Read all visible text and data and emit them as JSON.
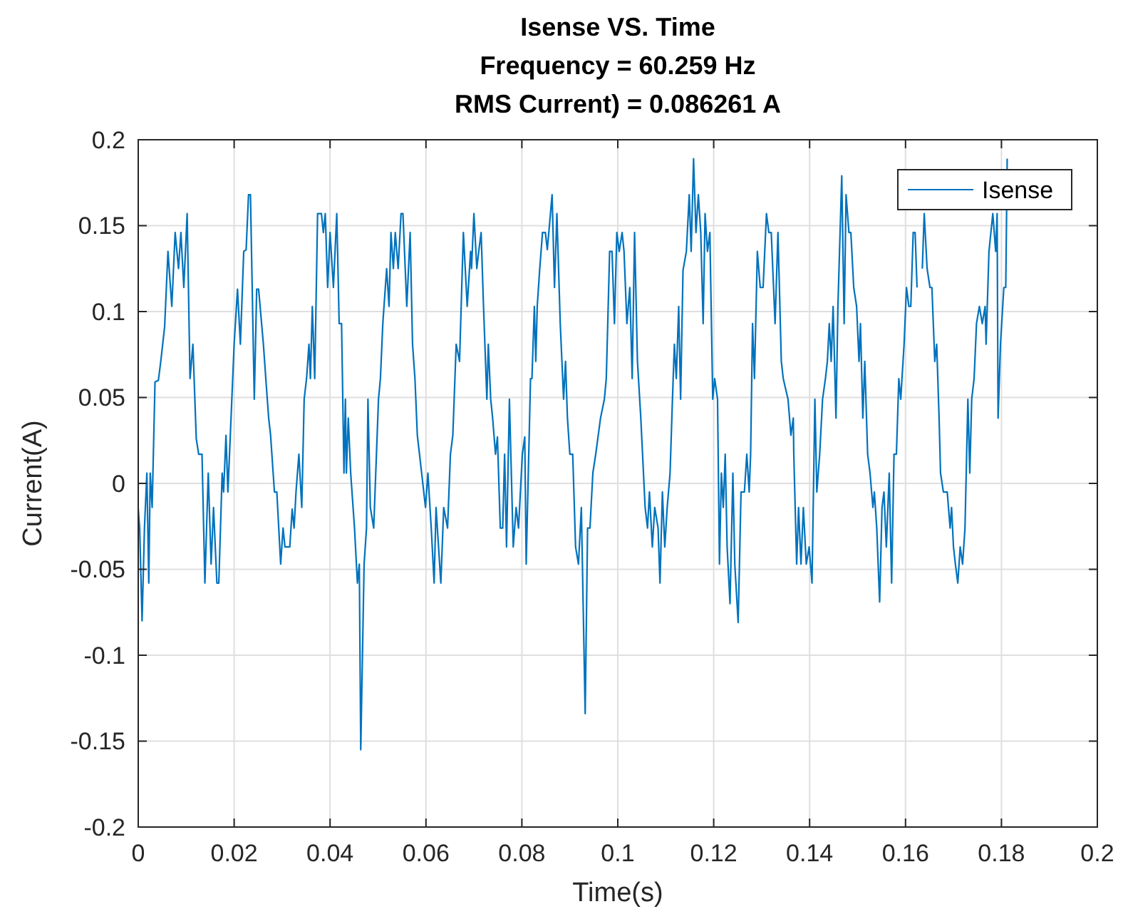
{
  "chart_data": {
    "type": "line",
    "title": "Isense VS. Time\nFrequency = 60.259 Hz\nRMS Current) = 0.086261 A",
    "xlabel": "Time(s)",
    "ylabel": "Current(A)",
    "xlim": [
      0,
      0.2
    ],
    "ylim": [
      -0.2,
      0.2
    ],
    "xticks": [
      0,
      0.02,
      0.04,
      0.06,
      0.08,
      0.1,
      0.12,
      0.14,
      0.16,
      0.18,
      0.2
    ],
    "yticks": [
      -0.2,
      -0.15,
      -0.1,
      -0.05,
      0,
      0.05,
      0.1,
      0.15,
      0.2
    ],
    "grid": true,
    "legend": "top right",
    "line_style": "solid",
    "series": [
      {
        "name": "Isense",
        "color": "#0072bd",
        "x": [
          0,
          0.0003,
          0.0008,
          0.0013,
          0.0018,
          0.0022,
          0.0025,
          0.0029,
          0.0035,
          0.0042,
          0.0047,
          0.0055,
          0.0062,
          0.007,
          0.0077,
          0.0084,
          0.0089,
          0.0095,
          0.0102,
          0.0108,
          0.0114,
          0.0121,
          0.0126,
          0.0133,
          0.0139,
          0.0146,
          0.0152,
          0.0157,
          0.0164,
          0.0168,
          0.0175,
          0.0178,
          0.0183,
          0.0187,
          0.02,
          0.0207,
          0.0213,
          0.022,
          0.0225,
          0.023,
          0.0234,
          0.0242,
          0.0247,
          0.0251,
          0.0261,
          0.0266,
          0.0272,
          0.0276,
          0.0284,
          0.0289,
          0.0297,
          0.0302,
          0.0306,
          0.0316,
          0.0321,
          0.0325,
          0.0329,
          0.0335,
          0.0341,
          0.0346,
          0.0351,
          0.0356,
          0.0359,
          0.0363,
          0.0368,
          0.0374,
          0.0382,
          0.0386,
          0.039,
          0.0395,
          0.04,
          0.0407,
          0.0414,
          0.0419,
          0.0424,
          0.0429,
          0.0432,
          0.0434,
          0.0438,
          0.0443,
          0.0451,
          0.0457,
          0.0461,
          0.0464,
          0.0471,
          0.0476,
          0.0479,
          0.0484,
          0.0491,
          0.0501,
          0.0505,
          0.051,
          0.0518,
          0.0523,
          0.0527,
          0.0532,
          0.0536,
          0.0542,
          0.0548,
          0.0552,
          0.056,
          0.0567,
          0.0572,
          0.0577,
          0.0582,
          0.0591,
          0.0599,
          0.0604,
          0.0611,
          0.0617,
          0.0621,
          0.0631,
          0.0637,
          0.0645,
          0.0651,
          0.0656,
          0.0663,
          0.067,
          0.0678,
          0.0686,
          0.0693,
          0.0695,
          0.07,
          0.0706,
          0.071,
          0.0715,
          0.072,
          0.0727,
          0.073,
          0.0735,
          0.0739,
          0.0745,
          0.0749,
          0.0755,
          0.076,
          0.0764,
          0.0768,
          0.0774,
          0.0782,
          0.0788,
          0.0793,
          0.0801,
          0.0806,
          0.0809,
          0.0818,
          0.0821,
          0.0826,
          0.0829,
          0.0832,
          0.0837,
          0.0843,
          0.0849,
          0.0853,
          0.0863,
          0.0868,
          0.0873,
          0.088,
          0.0887,
          0.0891,
          0.0895,
          0.09,
          0.0906,
          0.0912,
          0.0918,
          0.0924,
          0.0932,
          0.0937,
          0.0942,
          0.0948,
          0.0954,
          0.0964,
          0.0972,
          0.0976,
          0.0983,
          0.0988,
          0.0993,
          0.0998,
          0.1003,
          0.1009,
          0.1013,
          0.1019,
          0.1025,
          0.103,
          0.1035,
          0.1041,
          0.1048,
          0.1057,
          0.1062,
          0.1066,
          0.1072,
          0.1077,
          0.1084,
          0.1088,
          0.1093,
          0.1098,
          0.1103,
          0.1109,
          0.1114,
          0.1118,
          0.1122,
          0.1127,
          0.1131,
          0.1136,
          0.1143,
          0.1149,
          0.1153,
          0.1158,
          0.1163,
          0.1168,
          0.1173,
          0.1178,
          0.1182,
          0.1187,
          0.1192,
          0.1198,
          0.1202,
          0.1208,
          0.1212,
          0.1216,
          0.122,
          0.1224,
          0.1228,
          0.1234,
          0.124,
          0.1244,
          0.1251,
          0.1257,
          0.1264,
          0.1269,
          0.1274,
          0.1277,
          0.1281,
          0.1285,
          0.1291,
          0.1297,
          0.1303,
          0.131,
          0.1315,
          0.132,
          0.1328,
          0.1334,
          0.1341,
          0.1345,
          0.1355,
          0.1361,
          0.1366,
          0.1367,
          0.1373,
          0.1377,
          0.1382,
          0.1387,
          0.1393,
          0.1399,
          0.1405,
          0.1411,
          0.1415,
          0.1421,
          0.1427,
          0.1433,
          0.1437,
          0.1441,
          0.1445,
          0.1449,
          0.1455,
          0.1459,
          0.1467,
          0.1472,
          0.1476,
          0.1482,
          0.1486,
          0.1492,
          0.1498,
          0.1503,
          0.1506,
          0.1511,
          0.1515,
          0.1521,
          0.1526,
          0.1532,
          0.1535,
          0.154,
          0.1546,
          0.1551,
          0.1555,
          0.156,
          0.1566,
          0.1571,
          0.1576,
          0.1581,
          0.1586,
          0.159,
          0.1597,
          0.1602,
          0.1607,
          0.1611,
          0.1616,
          0.162,
          0.1624,
          0.163,
          0.1635,
          0.1639,
          0.1645,
          0.1651,
          0.1655,
          0.1661,
          0.1665,
          0.167,
          0.1673,
          0.1679,
          0.1687,
          0.1693,
          0.1696,
          0.17,
          0.1704,
          0.1709,
          0.1714,
          0.1719,
          0.1724,
          0.173,
          0.1734,
          0.1738,
          0.1743,
          0.1748,
          0.1754,
          0.176,
          0.1766,
          0.1768,
          0.1774,
          0.1782,
          0.1788,
          0.1791,
          0.1793,
          0.1798,
          0.1805,
          0.1809,
          0.1812
        ],
        "values": [
          -0.015,
          -0.026,
          -0.08,
          -0.026,
          0.006,
          -0.058,
          0.006,
          -0.014,
          0.059,
          0.06,
          0.071,
          0.091,
          0.135,
          0.103,
          0.146,
          0.125,
          0.146,
          0.114,
          0.157,
          0.061,
          0.081,
          0.026,
          0.017,
          0.017,
          -0.058,
          0.006,
          -0.047,
          -0.014,
          -0.058,
          -0.058,
          0.006,
          -0.005,
          0.028,
          -0.005,
          0.081,
          0.113,
          0.081,
          0.135,
          0.136,
          0.168,
          0.168,
          0.049,
          0.113,
          0.113,
          0.081,
          0.061,
          0.038,
          0.028,
          -0.005,
          -0.005,
          -0.047,
          -0.026,
          -0.037,
          -0.037,
          -0.015,
          -0.026,
          -0.005,
          0.017,
          -0.014,
          0.049,
          0.061,
          0.081,
          0.061,
          0.103,
          0.061,
          0.157,
          0.157,
          0.146,
          0.157,
          0.114,
          0.146,
          0.114,
          0.157,
          0.093,
          0.093,
          0.006,
          0.049,
          0.006,
          0.038,
          0.006,
          -0.026,
          -0.058,
          -0.047,
          -0.155,
          -0.047,
          -0.026,
          0.049,
          -0.014,
          -0.026,
          0.049,
          0.061,
          0.093,
          0.125,
          0.103,
          0.146,
          0.125,
          0.146,
          0.125,
          0.157,
          0.157,
          0.103,
          0.146,
          0.081,
          0.061,
          0.028,
          0.006,
          -0.014,
          0.006,
          -0.026,
          -0.058,
          -0.014,
          -0.058,
          -0.014,
          -0.026,
          0.017,
          0.028,
          0.081,
          0.071,
          0.146,
          0.103,
          0.135,
          0.125,
          0.157,
          0.125,
          0.135,
          0.146,
          0.103,
          0.049,
          0.081,
          0.049,
          0.038,
          0.017,
          0.027,
          -0.026,
          -0.026,
          0.017,
          -0.037,
          0.049,
          -0.037,
          -0.014,
          -0.026,
          0.017,
          0.027,
          -0.047,
          0.061,
          0.061,
          0.103,
          0.071,
          0.103,
          0.124,
          0.146,
          0.146,
          0.136,
          0.168,
          0.114,
          0.157,
          0.093,
          0.049,
          0.071,
          0.038,
          0.017,
          0.017,
          -0.037,
          -0.047,
          -0.014,
          -0.134,
          -0.026,
          -0.026,
          0.006,
          0.017,
          0.038,
          0.049,
          0.061,
          0.135,
          0.135,
          0.093,
          0.146,
          0.135,
          0.146,
          0.135,
          0.093,
          0.114,
          0.061,
          0.146,
          0.071,
          0.038,
          -0.014,
          -0.026,
          -0.005,
          -0.037,
          -0.014,
          -0.026,
          -0.058,
          -0.005,
          -0.037,
          -0.014,
          0.006,
          0.049,
          0.081,
          0.061,
          0.103,
          0.049,
          0.124,
          0.135,
          0.168,
          0.135,
          0.189,
          0.146,
          0.168,
          0.146,
          0.093,
          0.157,
          0.135,
          0.146,
          0.049,
          0.061,
          0.049,
          -0.047,
          0.006,
          -0.014,
          0.017,
          -0.037,
          -0.07,
          0.006,
          -0.047,
          -0.081,
          -0.005,
          -0.005,
          0.017,
          -0.005,
          0.017,
          0.093,
          0.061,
          0.135,
          0.114,
          0.114,
          0.157,
          0.146,
          0.146,
          0.093,
          0.146,
          0.071,
          0.061,
          0.049,
          0.028,
          0.038,
          0.017,
          -0.047,
          -0.014,
          -0.047,
          -0.014,
          -0.047,
          -0.037,
          -0.058,
          0.049,
          -0.005,
          0.017,
          0.049,
          0.061,
          0.071,
          0.093,
          0.071,
          0.103,
          0.038,
          0.103,
          0.179,
          0.093,
          0.168,
          0.146,
          0.146,
          0.114,
          0.103,
          0.071,
          0.093,
          0.038,
          0.071,
          0.017,
          0.006,
          -0.014,
          -0.005,
          -0.026,
          -0.069,
          -0.014,
          -0.005,
          -0.037,
          0.006,
          -0.058,
          0.017,
          0.017,
          0.061,
          0.049,
          0.081,
          0.114,
          0.103,
          0.103,
          0.146,
          0.146,
          0.114,
          null,
          0.125,
          0.157,
          0.125,
          0.114,
          0.114,
          0.071,
          0.081,
          0.038,
          0.006,
          -0.005,
          -0.005,
          -0.026,
          -0.014,
          -0.037,
          -0.047,
          -0.058,
          -0.037,
          -0.047,
          -0.026,
          0.049,
          0.006,
          0.049,
          0.061,
          0.093,
          0.103,
          0.093,
          0.103,
          0.081,
          0.135,
          0.157,
          0.135,
          0.157,
          0.038,
          0.081,
          0.114,
          0.114,
          0.189
        ]
      }
    ]
  }
}
